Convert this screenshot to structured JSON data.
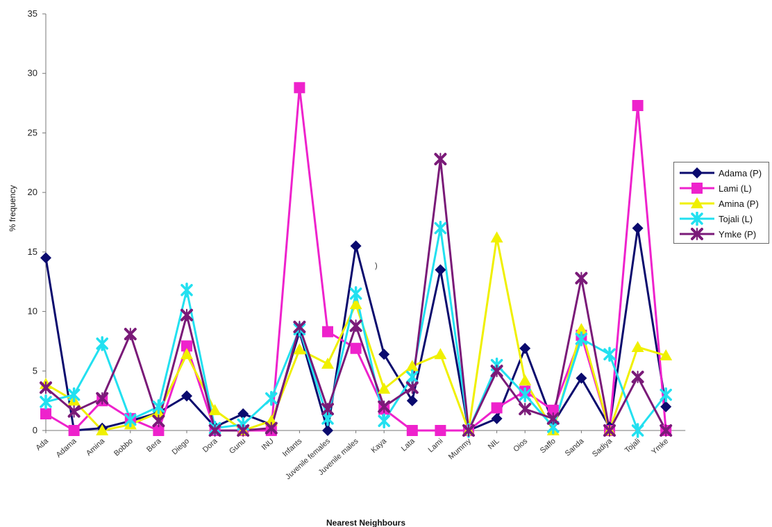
{
  "chart_data": {
    "type": "line",
    "title": "",
    "xlabel": "Nearest Neighbours",
    "ylabel": "% frequency",
    "ylim": [
      0,
      35
    ],
    "yticks": [
      "0",
      "5",
      "10",
      "15",
      "20",
      "25",
      "30",
      "35"
    ],
    "categories": [
      "Ada",
      "Adama",
      "Amina",
      "Bobbo",
      "Bera",
      "Diego",
      "Dora",
      "Gunu",
      "INU",
      "Infants",
      "Juvenile females",
      "Juvenile males",
      "Kaya",
      "Lata",
      "Lami",
      "Mummy",
      "NIL",
      "Oios",
      "Saffo",
      "Sanda",
      "Sadiya",
      "Tojali",
      "Ymke"
    ],
    "legend_position": "right",
    "grid": false,
    "series": [
      {
        "name": "Adama (P)",
        "color": "#0a0a6e",
        "marker": "diamond",
        "values": [
          14.5,
          0,
          0.2,
          0.8,
          1.5,
          2.9,
          0.3,
          1.4,
          0.5,
          8.3,
          0,
          15.5,
          6.4,
          2.5,
          13.5,
          0,
          1.0,
          6.9,
          0.6,
          4.4,
          0.3,
          17.0,
          2.0
        ]
      },
      {
        "name": "Lami (L)",
        "color": "#ee22cc",
        "marker": "square",
        "values": [
          1.4,
          0,
          2.5,
          1.0,
          0,
          7.1,
          0,
          0,
          0,
          28.8,
          8.3,
          6.9,
          1.8,
          0,
          0,
          0,
          1.9,
          3.3,
          1.7,
          8.0,
          0,
          27.3,
          0
        ]
      },
      {
        "name": "Amina (P)",
        "color": "#f0f000",
        "marker": "triangle",
        "values": [
          3.9,
          2.5,
          0,
          0.5,
          1.5,
          6.4,
          1.7,
          0,
          0.8,
          6.8,
          5.6,
          10.6,
          3.5,
          5.4,
          6.4,
          0,
          16.2,
          4.2,
          0,
          8.5,
          0,
          7.0,
          6.3
        ]
      },
      {
        "name": "Tojali (L)",
        "color": "#22e0f0",
        "marker": "asterisk",
        "values": [
          2.4,
          3.0,
          7.3,
          0.9,
          2.0,
          11.8,
          0.2,
          0.5,
          2.7,
          8.5,
          1.0,
          11.5,
          0.8,
          4.5,
          17.0,
          0,
          5.5,
          3.0,
          0.3,
          7.7,
          6.4,
          0,
          3.0
        ]
      },
      {
        "name": "Ymke (P)",
        "color": "#7a1a78",
        "marker": "x-cross",
        "values": [
          3.6,
          1.6,
          2.7,
          8.1,
          0.8,
          9.7,
          0,
          0,
          0.2,
          8.7,
          1.8,
          8.8,
          2.0,
          3.6,
          22.8,
          0,
          5.0,
          1.8,
          1.0,
          12.8,
          0,
          4.5,
          0
        ]
      }
    ]
  },
  "stray_mark": ")"
}
